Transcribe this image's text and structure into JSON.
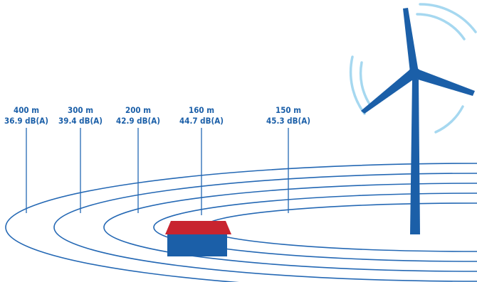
{
  "distance_markers": [
    {
      "distance": "400 m",
      "level": "36.9 dB(A)"
    },
    {
      "distance": "300 m",
      "level": "39.4 dB(A)"
    },
    {
      "distance": "200 m",
      "level": "42.9 dB(A)"
    },
    {
      "distance": "160 m",
      "level": "44.7 dB(A)"
    },
    {
      "distance": "150 m",
      "level": "45.3 dB(A)"
    }
  ],
  "colors": {
    "primary_blue": "#1b5fa8",
    "ring_blue": "#2468b4",
    "sound_wave_blue": "#a6d8f0",
    "roof_red": "#c8242f",
    "background": "#ffffff"
  },
  "icons": [
    "wind-turbine-icon",
    "house-icon",
    "sound-wave-icon"
  ]
}
